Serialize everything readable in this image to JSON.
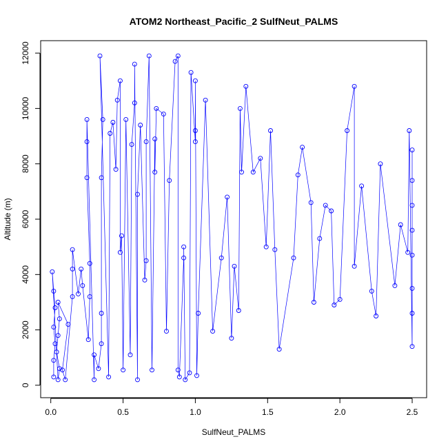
{
  "chart_data": {
    "type": "scatter",
    "title": "ATOM2 Northeast_Pacific_2 SulfNeut_PALMS",
    "xlabel": "SulfNeut_PALMS",
    "ylabel": "Altitude (m)",
    "xlim": [
      -0.07,
      2.6
    ],
    "ylim": [
      -450,
      12450
    ],
    "x_ticks": [
      "0.0",
      "0.5",
      "1.0",
      "1.5",
      "2.0",
      "2.5"
    ],
    "x_tick_values": [
      0,
      0.5,
      1,
      1.5,
      2,
      2.5
    ],
    "y_ticks": [
      "0",
      "2000",
      "4000",
      "6000",
      "8000",
      "10000",
      "12000"
    ],
    "y_tick_values": [
      0,
      2000,
      4000,
      6000,
      8000,
      10000,
      12000
    ],
    "grid": false,
    "marker": "open-circle",
    "connected": true,
    "color": "#0000ff",
    "points": [
      [
        0.02,
        300
      ],
      [
        0.02,
        900
      ],
      [
        0.03,
        1500
      ],
      [
        0.02,
        2100
      ],
      [
        0.03,
        2800
      ],
      [
        0.02,
        3400
      ],
      [
        0.01,
        4100
      ],
      [
        0.05,
        200
      ],
      [
        0.06,
        600
      ],
      [
        0.04,
        1200
      ],
      [
        0.05,
        1800
      ],
      [
        0.06,
        2400
      ],
      [
        0.05,
        3000
      ],
      [
        0.12,
        2200
      ],
      [
        0.08,
        550
      ],
      [
        0.1,
        200
      ],
      [
        0.15,
        3200
      ],
      [
        0.15,
        4200
      ],
      [
        0.15,
        4900
      ],
      [
        0.19,
        3300
      ],
      [
        0.21,
        4200
      ],
      [
        0.22,
        3600
      ],
      [
        0.26,
        1650
      ],
      [
        0.27,
        3200
      ],
      [
        0.27,
        4400
      ],
      [
        0.25,
        7500
      ],
      [
        0.25,
        8800
      ],
      [
        0.25,
        9600
      ],
      [
        0.3,
        200
      ],
      [
        0.3,
        1100
      ],
      [
        0.33,
        600
      ],
      [
        0.35,
        1500
      ],
      [
        0.35,
        2600
      ],
      [
        0.35,
        7500
      ],
      [
        0.36,
        9600
      ],
      [
        0.34,
        11900
      ],
      [
        0.4,
        300
      ],
      [
        0.41,
        9100
      ],
      [
        0.43,
        9500
      ],
      [
        0.45,
        7800
      ],
      [
        0.46,
        10300
      ],
      [
        0.48,
        11000
      ],
      [
        0.48,
        4800
      ],
      [
        0.49,
        5400
      ],
      [
        0.5,
        550
      ],
      [
        0.52,
        9600
      ],
      [
        0.55,
        1100
      ],
      [
        0.56,
        8700
      ],
      [
        0.58,
        10200
      ],
      [
        0.58,
        11600
      ],
      [
        0.6,
        200
      ],
      [
        0.6,
        6900
      ],
      [
        0.62,
        9400
      ],
      [
        0.65,
        3800
      ],
      [
        0.66,
        4500
      ],
      [
        0.66,
        8800
      ],
      [
        0.68,
        11900
      ],
      [
        0.7,
        550
      ],
      [
        0.72,
        8900
      ],
      [
        0.72,
        7700
      ],
      [
        0.73,
        10000
      ],
      [
        0.78,
        9800
      ],
      [
        0.8,
        1950
      ],
      [
        0.82,
        7400
      ],
      [
        0.86,
        11700
      ],
      [
        0.88,
        11900
      ],
      [
        0.88,
        550
      ],
      [
        0.89,
        300
      ],
      [
        0.92,
        4600
      ],
      [
        0.92,
        5000
      ],
      [
        0.93,
        200
      ],
      [
        0.96,
        450
      ],
      [
        0.97,
        11300
      ],
      [
        1.0,
        8800
      ],
      [
        1.0,
        9200
      ],
      [
        1.0,
        11000
      ],
      [
        1.01,
        350
      ],
      [
        1.02,
        2600
      ],
      [
        1.07,
        10300
      ],
      [
        1.12,
        1950
      ],
      [
        1.18,
        4600
      ],
      [
        1.22,
        6800
      ],
      [
        1.25,
        1700
      ],
      [
        1.27,
        4300
      ],
      [
        1.3,
        2700
      ],
      [
        1.31,
        10000
      ],
      [
        1.32,
        7700
      ],
      [
        1.35,
        10800
      ],
      [
        1.4,
        7700
      ],
      [
        1.45,
        8200
      ],
      [
        1.49,
        5000
      ],
      [
        1.52,
        9200
      ],
      [
        1.55,
        4900
      ],
      [
        1.58,
        1300
      ],
      [
        1.68,
        4600
      ],
      [
        1.71,
        7600
      ],
      [
        1.74,
        8600
      ],
      [
        1.8,
        6600
      ],
      [
        1.82,
        3000
      ],
      [
        1.86,
        5300
      ],
      [
        1.9,
        6500
      ],
      [
        1.94,
        6300
      ],
      [
        1.96,
        2900
      ],
      [
        2.0,
        3100
      ],
      [
        2.05,
        9200
      ],
      [
        2.1,
        10800
      ],
      [
        2.1,
        4300
      ],
      [
        2.15,
        7200
      ],
      [
        2.22,
        3400
      ],
      [
        2.25,
        2500
      ],
      [
        2.28,
        8000
      ],
      [
        2.38,
        3600
      ],
      [
        2.42,
        5800
      ],
      [
        2.47,
        4800
      ],
      [
        2.48,
        9200
      ],
      [
        2.5,
        1400
      ],
      [
        2.5,
        2600
      ],
      [
        2.5,
        3500
      ],
      [
        2.5,
        4700
      ],
      [
        2.5,
        5600
      ],
      [
        2.5,
        6500
      ],
      [
        2.5,
        7400
      ],
      [
        2.5,
        8500
      ]
    ]
  }
}
